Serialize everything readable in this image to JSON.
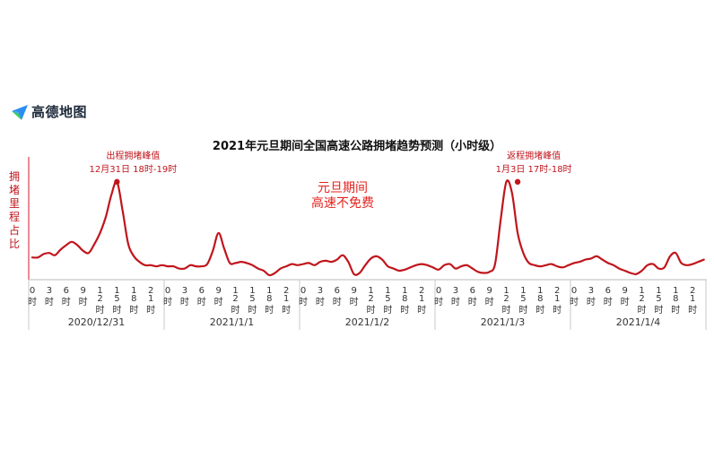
{
  "brand": {
    "name": "高德地图",
    "logo_icon": "amap-arrow-logo-icon"
  },
  "chart_data": {
    "type": "line",
    "title": "2021年元旦期间全国高速公路拥堵趋势预测（小时级）",
    "ylabel": "拥堵里程占比",
    "xlabel": "",
    "line_color": "#c0151c",
    "ylim": [
      0,
      100
    ],
    "x_tick_labels": [
      "0时",
      "3时",
      "6时",
      "9时",
      "12时",
      "15时",
      "18时",
      "21时"
    ],
    "days": [
      "2020/12/31",
      "2021/1/1",
      "2021/1/2",
      "2021/1/3",
      "2021/1/4"
    ],
    "hours_per_day": 24,
    "series": [
      {
        "values": [
          16,
          16,
          19,
          20,
          18,
          23,
          27,
          30,
          27,
          22,
          20,
          28,
          38,
          52,
          72,
          84,
          58,
          28,
          17,
          12,
          9,
          9,
          8,
          9,
          8,
          8,
          6,
          6,
          9,
          8,
          8,
          10,
          22,
          38,
          24,
          11,
          11,
          12,
          11,
          9,
          6,
          4,
          0,
          2,
          6,
          8,
          10,
          9,
          10,
          11,
          9,
          12,
          13,
          12,
          14,
          18,
          12,
          1,
          2,
          9,
          15,
          17,
          14,
          8,
          6,
          4,
          5,
          7,
          9,
          10,
          9,
          7,
          5,
          9,
          10,
          6,
          8,
          9,
          6,
          3,
          2,
          3,
          10,
          50,
          84,
          74,
          38,
          20,
          11,
          9,
          8,
          9,
          10,
          8,
          7,
          9,
          11,
          12,
          14,
          15,
          17,
          14,
          11,
          9,
          6,
          4,
          2,
          1,
          4,
          9,
          10,
          6,
          7,
          17,
          20,
          11,
          9,
          10,
          12,
          14
        ]
      }
    ],
    "annotations": [
      {
        "label": "出程拥堵峰值",
        "detail": "12月31日 18时-19时",
        "day": 0,
        "hour": 15,
        "value": 84,
        "color": "#c0151c"
      },
      {
        "label": "返程拥堵峰值",
        "detail": "1月3日 17时-18时",
        "day": 3,
        "hour": 14,
        "value": 84,
        "color": "#c0151c"
      }
    ],
    "callout": {
      "line1": "元旦期间",
      "line2": "高速不免费",
      "color": "#e2241f"
    }
  }
}
